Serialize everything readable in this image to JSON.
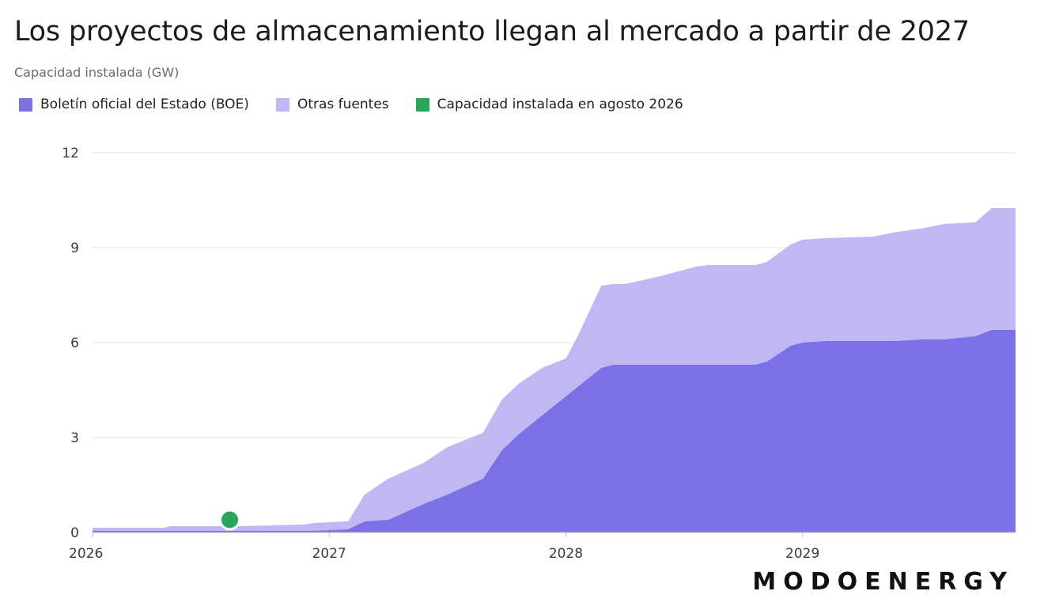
{
  "title": "Los proyectos de almacenamiento llegan al mercado a partir de 2027",
  "subtitle": "Capacidad instalada (GW)",
  "brand": "MODOENERGY",
  "legend": [
    {
      "label": "Boletín oficial del Estado (BOE)",
      "color": "#7b70e6"
    },
    {
      "label": "Otras fuentes",
      "color": "#c0b8f2"
    },
    {
      "label": "Capacidad instalada en agosto 2026",
      "color": "#27a857"
    }
  ],
  "chart_data": {
    "type": "area",
    "stacked": true,
    "ylabel": "Capacidad instalada (GW)",
    "ylim": [
      0,
      12
    ],
    "yticks": [
      0,
      3,
      6,
      9,
      12
    ],
    "xlim": [
      2026.0,
      2029.9
    ],
    "xticks": [
      {
        "value": 2026,
        "label": "2026"
      },
      {
        "value": 2027,
        "label": "2027"
      },
      {
        "value": 2028,
        "label": "2028"
      },
      {
        "value": 2029,
        "label": "2029"
      }
    ],
    "grid": true,
    "legend_position": "top-left",
    "x": [
      2026.0,
      2026.3,
      2026.33,
      2026.6,
      2026.63,
      2026.9,
      2026.93,
      2027.08,
      2027.15,
      2027.25,
      2027.4,
      2027.5,
      2027.65,
      2027.73,
      2027.8,
      2027.9,
      2028.0,
      2028.05,
      2028.15,
      2028.2,
      2028.25,
      2028.4,
      2028.55,
      2028.6,
      2028.8,
      2028.85,
      2028.95,
      2029.0,
      2029.1,
      2029.3,
      2029.4,
      2029.5,
      2029.6,
      2029.73,
      2029.8,
      2029.9
    ],
    "series": [
      {
        "name": "Boletín oficial del Estado (BOE)",
        "color": "#7b70e6",
        "values": [
          0.05,
          0.05,
          0.05,
          0.05,
          0.05,
          0.05,
          0.05,
          0.1,
          0.35,
          0.4,
          0.9,
          1.2,
          1.7,
          2.6,
          3.1,
          3.7,
          4.3,
          4.6,
          5.2,
          5.3,
          5.3,
          5.3,
          5.3,
          5.3,
          5.3,
          5.4,
          5.9,
          6.0,
          6.05,
          6.05,
          6.05,
          6.1,
          6.1,
          6.2,
          6.4,
          6.4
        ]
      },
      {
        "name": "Otras fuentes",
        "color": "#c0b8f2",
        "values": [
          0.1,
          0.1,
          0.15,
          0.15,
          0.15,
          0.2,
          0.25,
          0.25,
          0.85,
          1.3,
          1.3,
          1.5,
          1.45,
          1.6,
          1.6,
          1.5,
          1.2,
          1.6,
          2.6,
          2.55,
          2.55,
          2.8,
          3.1,
          3.15,
          3.15,
          3.15,
          3.2,
          3.25,
          3.25,
          3.3,
          3.45,
          3.5,
          3.65,
          3.6,
          3.85,
          3.85
        ]
      }
    ],
    "marker": {
      "label": "Capacidad instalada en agosto 2026",
      "x": 2026.58,
      "y": 0.25,
      "color": "#27a857"
    }
  }
}
